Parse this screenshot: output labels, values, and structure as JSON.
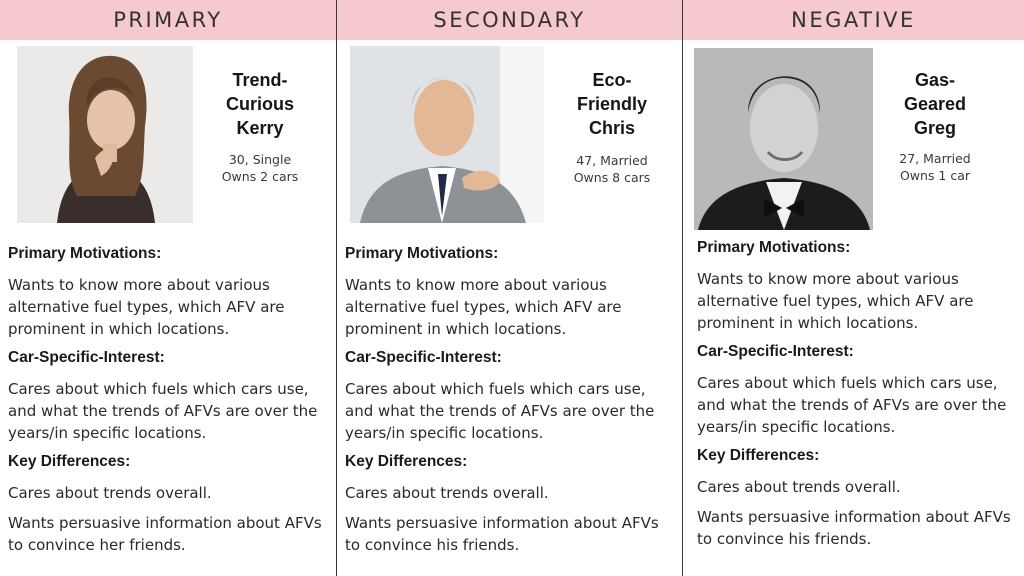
{
  "personas": [
    {
      "category": "PRIMARY",
      "name": "Trend-\nCurious\nKerry",
      "name_lines": [
        "Trend-",
        "Curious",
        "Kerry"
      ],
      "age_status": "30, Single",
      "cars": "Owns 2 cars",
      "motivations_title": "Primary Motivations:",
      "motivations": "Wants to know more about various alternative fuel types, which AFV are prominent in which locations.",
      "interest_title": "Car-Specific-Interest:",
      "interest": "Cares about which fuels which cars use, and what the trends of AFVs are over the years/in specific locations.",
      "differences_title": "Key Differences:",
      "difference_1": "Cares about trends overall.",
      "difference_2": "Wants persuasive information about AFVs to convince her friends."
    },
    {
      "category": "SECONDARY",
      "name_lines": [
        "Eco-",
        "Friendly",
        "Chris"
      ],
      "age_status": "47, Married",
      "cars": "Owns 8 cars",
      "motivations_title": "Primary Motivations:",
      "motivations": "Wants to know more about various alternative fuel types, which AFV are prominent in which locations.",
      "interest_title": "Car-Specific-Interest:",
      "interest": "Cares about which fuels which cars use, and what the trends of AFVs are over the years/in specific locations.",
      "differences_title": "Key Differences:",
      "difference_1": "Cares about trends overall.",
      "difference_2": "Wants persuasive information about AFVs to convince his friends."
    },
    {
      "category": "NEGATIVE",
      "name_lines": [
        "Gas-",
        "Geared",
        "Greg"
      ],
      "age_status": "27, Married",
      "cars": "Owns 1 car",
      "motivations_title": "Primary Motivations:",
      "motivations": "Wants to know more about various alternative fuel types, which AFV are prominent in which locations.",
      "interest_title": "Car-Specific-Interest:",
      "interest": "Cares about which fuels which cars use, and what the trends of AFVs are over the years/in specific locations.",
      "differences_title": "Key Differences:",
      "difference_1": "Cares about trends overall.",
      "difference_2": "Wants persuasive information about AFVs to convince his friends."
    }
  ],
  "colors": {
    "header_bg": "#f6c9cf",
    "divider": "#3a3a3a",
    "text": "#2a2a2a"
  }
}
